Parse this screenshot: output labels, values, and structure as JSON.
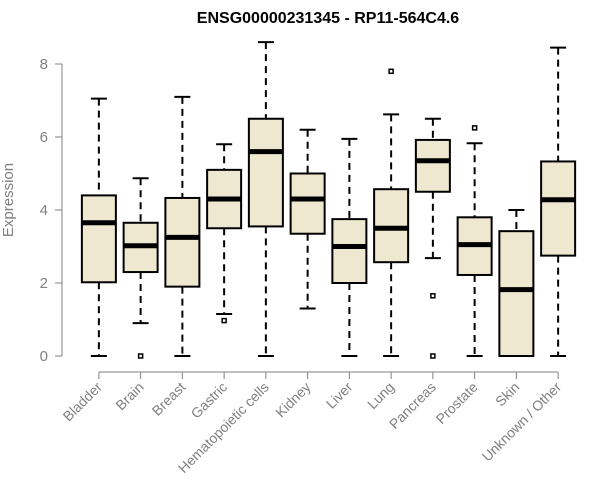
{
  "chart_data": {
    "type": "boxplot",
    "title": "ENSG00000231345 - RP11-564C4.6",
    "ylabel": "Expression",
    "xlabel": "",
    "ylim": [
      0,
      8.6
    ],
    "yticks": [
      0,
      2,
      4,
      6,
      8
    ],
    "grid": false,
    "categories": [
      "Bladder",
      "Brain",
      "Breast",
      "Gastric",
      "Hematopoietic cells",
      "Kidney",
      "Liver",
      "Lung",
      "Pancreas",
      "Prostate",
      "Skin",
      "Unknown / Other"
    ],
    "boxes": [
      {
        "category": "Bladder",
        "whisker_low": 0.0,
        "q1": 2.02,
        "median": 3.65,
        "q3": 4.4,
        "whisker_high": 7.05,
        "outliers": []
      },
      {
        "category": "Brain",
        "whisker_low": 0.9,
        "q1": 2.3,
        "median": 3.02,
        "q3": 3.65,
        "whisker_high": 4.87,
        "outliers": [
          0.0
        ]
      },
      {
        "category": "Breast",
        "whisker_low": 0.0,
        "q1": 1.9,
        "median": 3.25,
        "q3": 4.33,
        "whisker_high": 7.1,
        "outliers": []
      },
      {
        "category": "Gastric",
        "whisker_low": 1.15,
        "q1": 3.5,
        "median": 4.3,
        "q3": 5.1,
        "whisker_high": 5.8,
        "outliers": [
          0.97
        ]
      },
      {
        "category": "Hematopoietic cells",
        "whisker_low": 0.0,
        "q1": 3.55,
        "median": 5.6,
        "q3": 6.5,
        "whisker_high": 8.6,
        "outliers": []
      },
      {
        "category": "Kidney",
        "whisker_low": 1.3,
        "q1": 3.35,
        "median": 4.3,
        "q3": 5.0,
        "whisker_high": 6.2,
        "outliers": []
      },
      {
        "category": "Liver",
        "whisker_low": 0.0,
        "q1": 2.0,
        "median": 3.0,
        "q3": 3.75,
        "whisker_high": 5.95,
        "outliers": []
      },
      {
        "category": "Lung",
        "whisker_low": 0.0,
        "q1": 2.57,
        "median": 3.5,
        "q3": 4.57,
        "whisker_high": 6.62,
        "outliers": [
          7.8
        ]
      },
      {
        "category": "Pancreas",
        "whisker_low": 2.68,
        "q1": 4.5,
        "median": 5.35,
        "q3": 5.92,
        "whisker_high": 6.5,
        "outliers": [
          1.65,
          0.0
        ]
      },
      {
        "category": "Prostate",
        "whisker_low": 0.0,
        "q1": 2.22,
        "median": 3.05,
        "q3": 3.8,
        "whisker_high": 5.83,
        "outliers": [
          6.25
        ]
      },
      {
        "category": "Skin",
        "whisker_low": 0.0,
        "q1": 0.0,
        "median": 1.82,
        "q3": 3.42,
        "whisker_high": 4.0,
        "outliers": []
      },
      {
        "category": "Unknown / Other",
        "whisker_low": 0.0,
        "q1": 2.75,
        "median": 4.28,
        "q3": 5.33,
        "whisker_high": 8.45,
        "outliers": []
      }
    ],
    "colors": {
      "box_fill": "#efe8d0",
      "box_stroke": "#000000",
      "axis": "#808080"
    }
  }
}
